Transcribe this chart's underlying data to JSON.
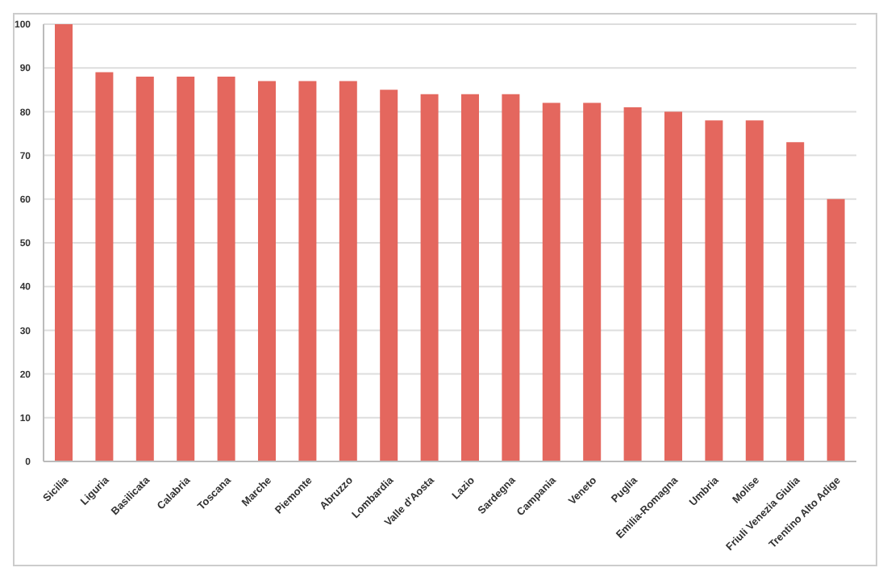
{
  "chart_data": {
    "type": "bar",
    "categories": [
      "Sicilia",
      "Liguria",
      "Basilicata",
      "Calabria",
      "Toscana",
      "Marche",
      "Piemonte",
      "Abruzzo",
      "Lombardia",
      "Valle d'Aosta",
      "Lazio",
      "Sardegna",
      "Campania",
      "Veneto",
      "Puglia",
      "Emilia-Romagna",
      "Umbria",
      "Molise",
      "Friuli Venezia Giulia",
      "Trentino Alto Adige"
    ],
    "values": [
      100,
      89,
      88,
      88,
      88,
      87,
      87,
      87,
      85,
      84,
      84,
      84,
      82,
      82,
      81,
      80,
      78,
      78,
      73,
      60
    ],
    "color": "#e4675e",
    "ylim": [
      0,
      100
    ],
    "yticks": [
      0,
      10,
      20,
      30,
      40,
      50,
      60,
      70,
      80,
      90,
      100
    ],
    "grid": "y"
  }
}
